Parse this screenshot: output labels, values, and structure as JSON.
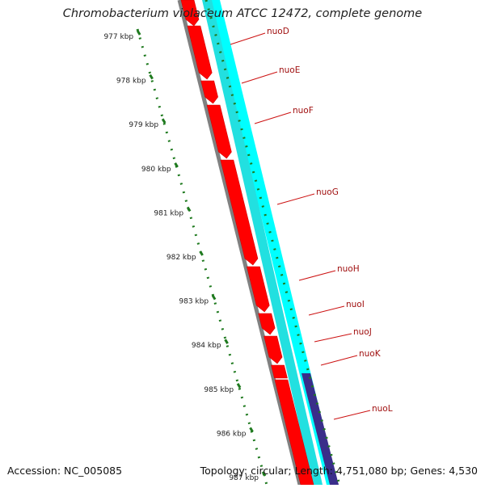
{
  "header": {
    "title": "Chromobacterium violaceum ATCC 12472, complete genome"
  },
  "footer": {
    "accession": "Accession: NC_005085",
    "summary": "Topology: circular; Length: 4,751,080 bp; Genes: 4,530"
  },
  "ruler_ticks": [
    "977 kbp",
    "978 kbp",
    "979 kbp",
    "980 kbp",
    "981 kbp",
    "982 kbp",
    "983 kbp",
    "984 kbp",
    "985 kbp",
    "986 kbp",
    "987 kbp"
  ],
  "genes": [
    "nuoD",
    "nuoE",
    "nuoF",
    "nuoG",
    "nuoH",
    "nuoI",
    "nuoJ",
    "nuoK",
    "nuoL"
  ],
  "colors": {
    "cds": "#ff0000",
    "backbone": "#808080",
    "track_cyan": "#00ffff",
    "track_navy": "#3a2e8a",
    "ruler": "#1f7a1f",
    "label": "#a01010"
  }
}
